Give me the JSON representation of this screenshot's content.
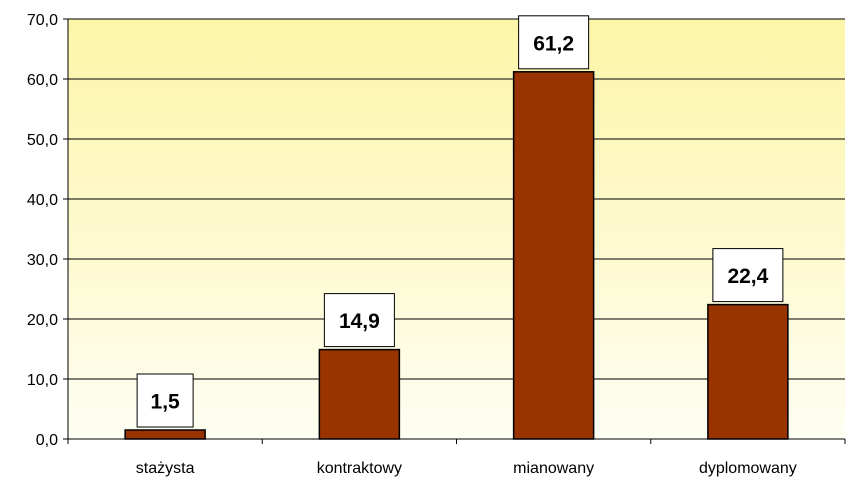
{
  "chart_data": {
    "type": "bar",
    "categories": [
      "stażysta",
      "kontraktowy",
      "mianowany",
      "dyplomowany"
    ],
    "values": [
      1.5,
      14.9,
      61.2,
      22.4
    ],
    "data_labels": [
      "1,5",
      "14,9",
      "61,2",
      "22,4"
    ],
    "y_tick_labels": [
      "0,0",
      "10,0",
      "20,0",
      "30,0",
      "40,0",
      "50,0",
      "60,0",
      "70,0"
    ],
    "ylim": [
      0,
      70
    ],
    "title": "",
    "xlabel": "",
    "ylabel": "",
    "grid": true,
    "legend": "none",
    "colors": {
      "bar_fill": "#993300",
      "bar_stroke": "#000000",
      "plot_bg_top": "#fdf5a8",
      "plot_bg_bottom": "#fefef2",
      "gridline": "#000000"
    }
  }
}
